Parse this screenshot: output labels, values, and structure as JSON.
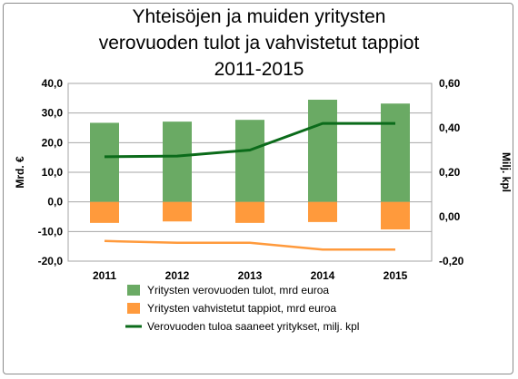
{
  "chart_data": {
    "type": "bar",
    "title": "Yhteisöjen ja muiden yritysten\nverovuoden tulot ja vahvistetut tappiot\n2011-2015",
    "categories": [
      "2011",
      "2012",
      "2013",
      "2014",
      "2015"
    ],
    "series": [
      {
        "name": "Yritysten verovuoden tulot, mrd  euroa",
        "type": "bar",
        "axis": "left",
        "color": "#6aaa64",
        "values": [
          26.7,
          27.1,
          27.7,
          34.5,
          33.2
        ]
      },
      {
        "name": "Yritysten vahvistetut tappiot, mrd  euroa",
        "type": "bar",
        "axis": "left",
        "color": "#ff9a3c",
        "values": [
          -7.1,
          -6.6,
          -7.1,
          -6.8,
          -9.3
        ]
      },
      {
        "name": "Yritysten vahvistetut tappiot, mrd  euroa",
        "type": "line",
        "axis": "left",
        "color": "#ff9a3c",
        "values": [
          -13.2,
          -13.8,
          -13.8,
          -16.1,
          -16.1
        ]
      },
      {
        "name": "Verovuoden tuloa saaneet yritykset, milj. kpl",
        "type": "line",
        "axis": "right",
        "color": "#0b6b1a",
        "values": [
          0.27,
          0.273,
          0.3,
          0.42,
          0.42
        ]
      }
    ],
    "ylabel": "Mrd. €",
    "y2label": "Milj. kpl",
    "ylim": [
      -20,
      40
    ],
    "y2lim": [
      -0.2,
      0.6
    ],
    "yticks": [
      "40,0",
      "30,0",
      "20,0",
      "10,0",
      "0,0",
      "-10,0",
      "-20,0"
    ],
    "y2ticks": [
      "0,60",
      "0,40",
      "0,20",
      "0,00",
      "-0,20"
    ],
    "grid": true,
    "legend": "bottom"
  }
}
